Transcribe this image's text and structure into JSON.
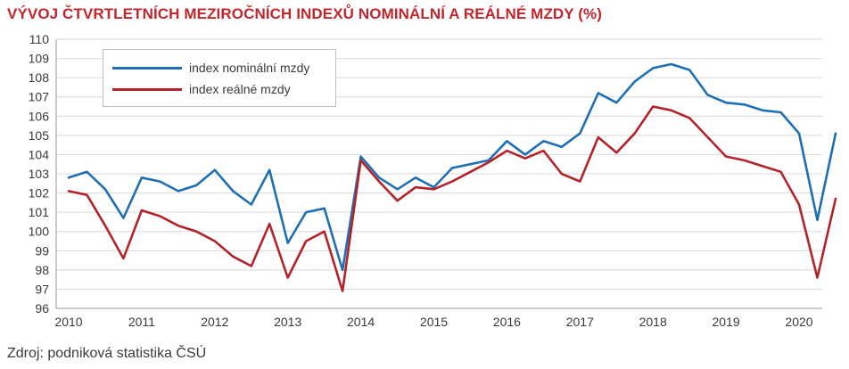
{
  "title": "VÝVOJ ČTVRTLETNÍCH MEZIROČNÍCH INDEXŮ NOMINÁLNÍ A REÁLNÉ MZDY (%)",
  "source": "Zdroj: podniková statistika ČSÚ",
  "colors": {
    "nominal": "#1f6fb2",
    "real": "#b3242a",
    "title": "#c0272d",
    "grid": "#d9d9d9"
  },
  "chart_data": {
    "type": "line",
    "title": "VÝVOJ ČTVRTLETNÍCH MEZIROČNÍCH INDEXŮ NOMINÁLNÍ A REÁLNÉ MZDY (%)",
    "xlabel": "",
    "ylabel": "",
    "ylim": [
      96,
      110
    ],
    "y_ticks": [
      "96",
      "97",
      "98",
      "99",
      "100",
      "101",
      "102",
      "103",
      "104",
      "105",
      "106",
      "107",
      "108",
      "109",
      "110"
    ],
    "x_ticks": [
      "2010",
      "2011",
      "2012",
      "2013",
      "2014",
      "2015",
      "2016",
      "2017",
      "2018",
      "2019",
      "2020"
    ],
    "grid": "horizontal",
    "legend": "top-left",
    "x": [
      "2010Q1",
      "2010Q2",
      "2010Q3",
      "2010Q4",
      "2011Q1",
      "2011Q2",
      "2011Q3",
      "2011Q4",
      "2012Q1",
      "2012Q2",
      "2012Q3",
      "2012Q4",
      "2013Q1",
      "2013Q2",
      "2013Q3",
      "2013Q4",
      "2014Q1",
      "2014Q2",
      "2014Q3",
      "2014Q4",
      "2015Q1",
      "2015Q2",
      "2015Q3",
      "2015Q4",
      "2016Q1",
      "2016Q2",
      "2016Q3",
      "2016Q4",
      "2017Q1",
      "2017Q2",
      "2017Q3",
      "2017Q4",
      "2018Q1",
      "2018Q2",
      "2018Q3",
      "2018Q4",
      "2019Q1",
      "2019Q2",
      "2019Q3",
      "2019Q4",
      "2020Q1",
      "2020Q2",
      "2020Q3"
    ],
    "series": [
      {
        "name": "index nominální mzdy",
        "values": [
          102.8,
          103.1,
          102.2,
          100.7,
          102.8,
          102.6,
          102.1,
          102.4,
          103.2,
          102.1,
          101.4,
          103.2,
          99.4,
          101.0,
          101.2,
          98.0,
          103.9,
          102.8,
          102.2,
          102.8,
          102.3,
          103.3,
          103.5,
          103.7,
          104.7,
          104.0,
          104.7,
          104.4,
          105.1,
          107.2,
          106.7,
          107.8,
          108.5,
          108.7,
          108.4,
          107.1,
          106.7,
          106.6,
          106.3,
          106.2,
          105.1,
          100.6,
          105.1
        ]
      },
      {
        "name": "index reálné mzdy",
        "values": [
          102.1,
          101.9,
          100.3,
          98.6,
          101.1,
          100.8,
          100.3,
          100.0,
          99.5,
          98.7,
          98.2,
          100.4,
          97.6,
          99.5,
          100.0,
          96.9,
          103.7,
          102.6,
          101.6,
          102.3,
          102.2,
          102.6,
          103.1,
          103.6,
          104.2,
          103.8,
          104.2,
          103.0,
          102.6,
          104.9,
          104.1,
          105.1,
          106.5,
          106.3,
          105.9,
          104.9,
          103.9,
          103.7,
          103.4,
          103.1,
          101.4,
          97.6,
          101.7
        ]
      }
    ]
  }
}
